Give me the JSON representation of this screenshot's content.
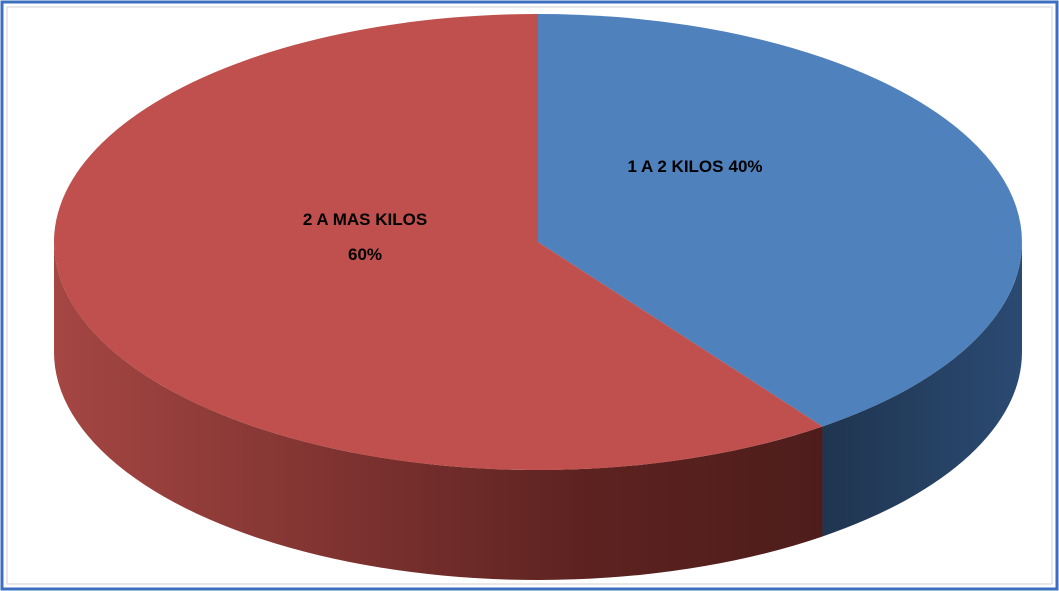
{
  "chart_data": {
    "type": "pie",
    "style": "3d",
    "categories": [
      "1 A 2 KILOS",
      "2 A MAS KILOS"
    ],
    "values": [
      40,
      60
    ],
    "value_labels": [
      "40%",
      "60%"
    ],
    "colors": [
      "#4f81bd",
      "#c0504d"
    ]
  }
}
